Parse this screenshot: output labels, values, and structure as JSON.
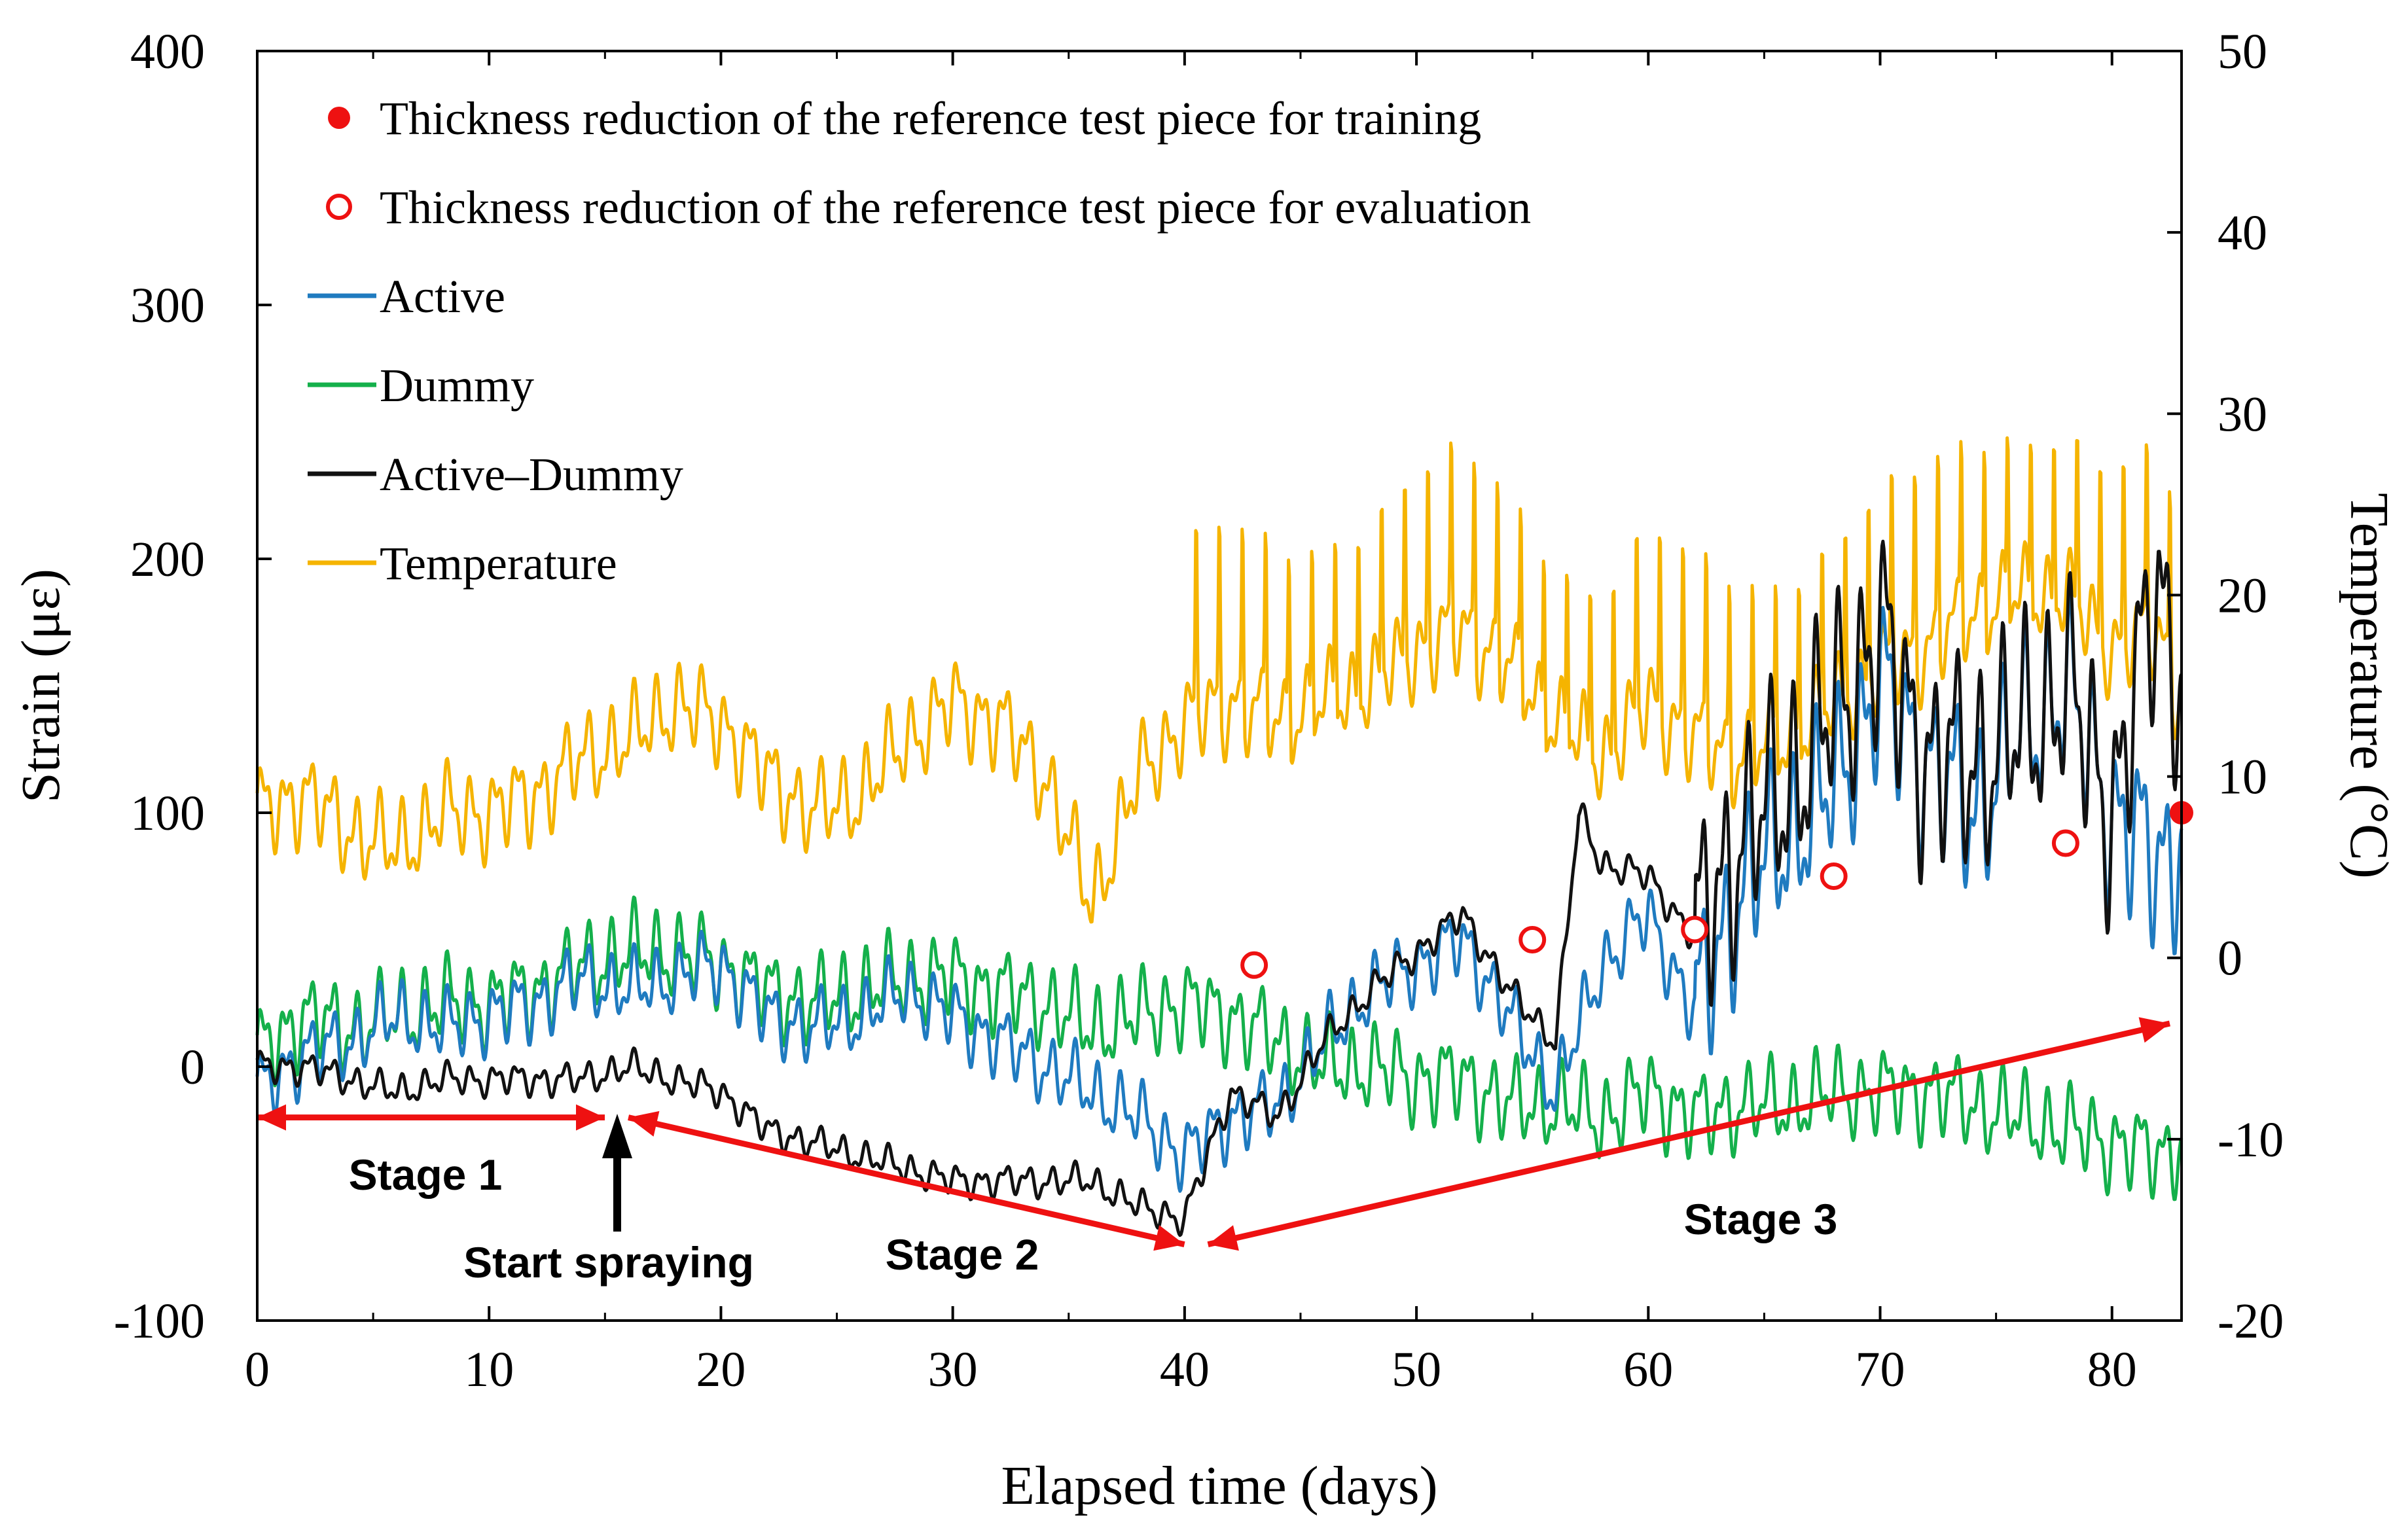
{
  "chart_data": {
    "type": "line",
    "xlabel": "Elapsed time (days)",
    "ylabel_left": "Strain (με)",
    "ylabel_right": "Temperature (°C)",
    "xlim": [
      0,
      83
    ],
    "ylim_left": [
      -100,
      400
    ],
    "ylim_right": [
      -20,
      50
    ],
    "x_ticks": [
      "0",
      "10",
      "20",
      "30",
      "40",
      "50",
      "60",
      "70",
      "80"
    ],
    "y_left_ticks": [
      "-100",
      "0",
      "100",
      "200",
      "300",
      "400"
    ],
    "y_right_ticks": [
      "-20",
      "-10",
      "0",
      "10",
      "20",
      "30",
      "40",
      "50"
    ],
    "grid": false,
    "legend": {
      "position": "top-left",
      "entries": [
        {
          "label": "Thickness reduction of the reference test piece for training",
          "marker": "filled-circle"
        },
        {
          "label": "Thickness reduction of the reference test piece for evaluation",
          "marker": "open-circle"
        },
        {
          "label": "Active",
          "marker": "line"
        },
        {
          "label": "Dummy",
          "marker": "line"
        },
        {
          "label": "Active–Dummy",
          "marker": "line"
        },
        {
          "label": "Temperature",
          "marker": "line"
        }
      ]
    },
    "colors": {
      "active": "#1f7bc0",
      "dummy": "#14b04b",
      "diff": "#111111",
      "temperature": "#f5b400",
      "marker": "#ee1111",
      "stage_arrow": "#ee1111"
    },
    "series": [
      {
        "name": "Temperature",
        "axis": "right",
        "x": [
          0,
          2,
          4,
          6,
          8,
          10,
          12,
          14,
          16,
          18,
          20,
          22,
          24,
          26,
          28,
          30,
          32,
          34,
          36,
          38,
          40,
          42,
          44,
          46,
          48,
          50,
          52,
          54,
          56,
          58,
          60,
          62,
          64,
          66,
          68,
          70,
          72,
          74,
          76,
          78,
          80,
          82,
          83
        ],
        "values": [
          8,
          9,
          7,
          6,
          8,
          8,
          9,
          11,
          12,
          14,
          13,
          10,
          8,
          9,
          12,
          14,
          13,
          10,
          3,
          10,
          13,
          14,
          13,
          14,
          15,
          17,
          18,
          16,
          13,
          11,
          14,
          12,
          11,
          12,
          14,
          16,
          17,
          19,
          20,
          20,
          17,
          18,
          14
        ]
      },
      {
        "name": "Active",
        "axis": "left",
        "x": [
          0,
          2,
          4,
          6,
          8,
          10,
          12,
          14,
          16,
          18,
          20,
          22,
          24,
          26,
          28,
          30,
          32,
          34,
          36,
          38,
          40,
          42,
          44,
          46,
          48,
          50,
          52,
          54,
          56,
          58,
          60,
          62,
          64,
          66,
          68,
          70,
          72,
          74,
          76,
          78,
          80,
          82,
          83
        ],
        "values": [
          -10,
          5,
          10,
          20,
          15,
          20,
          25,
          35,
          30,
          35,
          40,
          20,
          15,
          20,
          30,
          20,
          10,
          0,
          -10,
          -20,
          -35,
          -20,
          -15,
          10,
          30,
          40,
          50,
          20,
          -10,
          40,
          60,
          20,
          70,
          90,
          110,
          150,
          120,
          100,
          130,
          150,
          100,
          80,
          90
        ]
      },
      {
        "name": "Dummy",
        "axis": "left",
        "x": [
          0,
          2,
          4,
          6,
          8,
          10,
          12,
          14,
          16,
          18,
          20,
          22,
          24,
          26,
          28,
          30,
          32,
          34,
          36,
          38,
          40,
          42,
          44,
          46,
          48,
          50,
          52,
          54,
          56,
          58,
          60,
          62,
          64,
          66,
          68,
          70,
          72,
          74,
          76,
          78,
          80,
          82,
          83
        ],
        "values": [
          5,
          20,
          15,
          20,
          25,
          25,
          30,
          40,
          45,
          45,
          40,
          30,
          25,
          30,
          35,
          35,
          30,
          25,
          15,
          20,
          25,
          20,
          10,
          0,
          0,
          -5,
          -5,
          -15,
          -15,
          -20,
          -10,
          -20,
          -15,
          -15,
          -10,
          -10,
          -10,
          -15,
          -20,
          -25,
          -30,
          -35,
          -30
        ]
      },
      {
        "name": "Active–Dummy",
        "axis": "left",
        "x": [
          0,
          2,
          4,
          6,
          8,
          10,
          12,
          14,
          16,
          18,
          20,
          22,
          24,
          26,
          28,
          30,
          32,
          34,
          36,
          38,
          40,
          42,
          44,
          46,
          48,
          50,
          52,
          54,
          56,
          57,
          58,
          60,
          62,
          64,
          66,
          68,
          70,
          72,
          74,
          76,
          78,
          80,
          82,
          83
        ],
        "values": [
          0,
          0,
          -5,
          -10,
          -5,
          -5,
          -5,
          -5,
          0,
          -5,
          -10,
          -25,
          -30,
          -35,
          -40,
          -45,
          -45,
          -45,
          -45,
          -55,
          -60,
          -10,
          -20,
          10,
          30,
          45,
          60,
          30,
          10,
          100,
          80,
          75,
          50,
          90,
          110,
          140,
          170,
          120,
          120,
          130,
          150,
          100,
          190,
          150
        ]
      }
    ],
    "markers": {
      "training": [
        {
          "x": 83,
          "y": 100
        }
      ],
      "evaluation": [
        {
          "x": 43,
          "y": 40
        },
        {
          "x": 55,
          "y": 50
        },
        {
          "x": 62,
          "y": 54
        },
        {
          "x": 68,
          "y": 75
        },
        {
          "x": 78,
          "y": 88
        }
      ]
    },
    "stages": [
      {
        "label": "Stage 1",
        "x_start": 0,
        "y_start": -20,
        "x_end": 15.5,
        "y_end": -20
      },
      {
        "label": "Stage 2",
        "x_start": 15.5,
        "y_start": -20,
        "x_end": 40.5,
        "y_end": -70
      },
      {
        "label": "Stage 3",
        "x_start": 40.5,
        "y_start": -70,
        "x_end": 83,
        "y_end": 17
      }
    ],
    "annotations": [
      {
        "label": "Start spraying",
        "x": 15.5,
        "y": -20
      }
    ]
  }
}
